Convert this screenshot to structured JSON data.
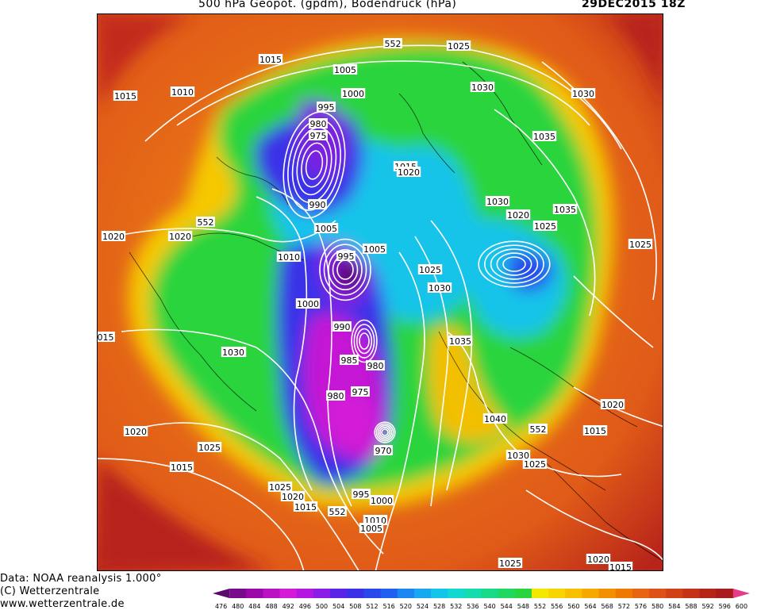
{
  "header": {
    "title": "500 hPa Geopot. (gpdm), Bodendruck (hPa)",
    "date": "29DEC2015 18Z"
  },
  "map": {
    "pressure_labels": [
      "552",
      "1025",
      "1015",
      "1005",
      "1000",
      "995",
      "980",
      "975",
      "1010",
      "1015",
      "1030",
      "1030",
      "1035",
      "1015",
      "1020",
      "990",
      "552",
      "1005",
      "1005",
      "1010",
      "1020",
      "995",
      "1025",
      "1030",
      "1020",
      "1030",
      "1035",
      "1025",
      "1025",
      "1000",
      "990",
      "1030",
      "985",
      "980",
      "975",
      "980",
      "970",
      "1035",
      "1040",
      "552",
      "1030",
      "1025",
      "1020",
      "1015",
      "1020",
      "1025",
      "1015",
      "1025",
      "1020",
      "1015",
      "1010",
      "1005",
      "1000",
      "995",
      "552",
      "1025",
      "1020",
      "1015",
      "1020",
      "1030",
      "015"
    ],
    "colors": {
      "deep_low": "#7a0a9e",
      "low": "#3a2ad6",
      "mid": "#16c8e6",
      "green": "#22d34b",
      "yellow": "#f5e400",
      "orange": "#f28a12",
      "red": "#c72b1c",
      "contour": "#ffffff"
    }
  },
  "credits": {
    "line1": "Data: NOAA reanalysis 1.000°",
    "line2": "(C) Wetterzentrale",
    "line3": "www.wetterzentrale.de"
  },
  "colorbar": {
    "ticks": [
      "476",
      "480",
      "484",
      "488",
      "492",
      "496",
      "500",
      "504",
      "508",
      "512",
      "516",
      "520",
      "524",
      "528",
      "532",
      "536",
      "540",
      "544",
      "548",
      "552",
      "556",
      "560",
      "564",
      "568",
      "572",
      "576",
      "580",
      "584",
      "588",
      "592",
      "596",
      "600"
    ],
    "colors": [
      "#5a0a6e",
      "#7a0a8c",
      "#9b0aa8",
      "#bb10c4",
      "#d41ad8",
      "#b418e0",
      "#8a1ee6",
      "#5a24e8",
      "#3a30e8",
      "#2848ec",
      "#2060f0",
      "#1a86f2",
      "#16a8f0",
      "#14c4ea",
      "#12d8d2",
      "#14dcae",
      "#18da86",
      "#1ed860",
      "#2ad43e",
      "#f4e800",
      "#f8d400",
      "#f8be00",
      "#f6a800",
      "#f29000",
      "#ee7800",
      "#e86412",
      "#de5016",
      "#d24016",
      "#c43218",
      "#b62418",
      "#a81a1c",
      "#e83a8a"
    ]
  }
}
